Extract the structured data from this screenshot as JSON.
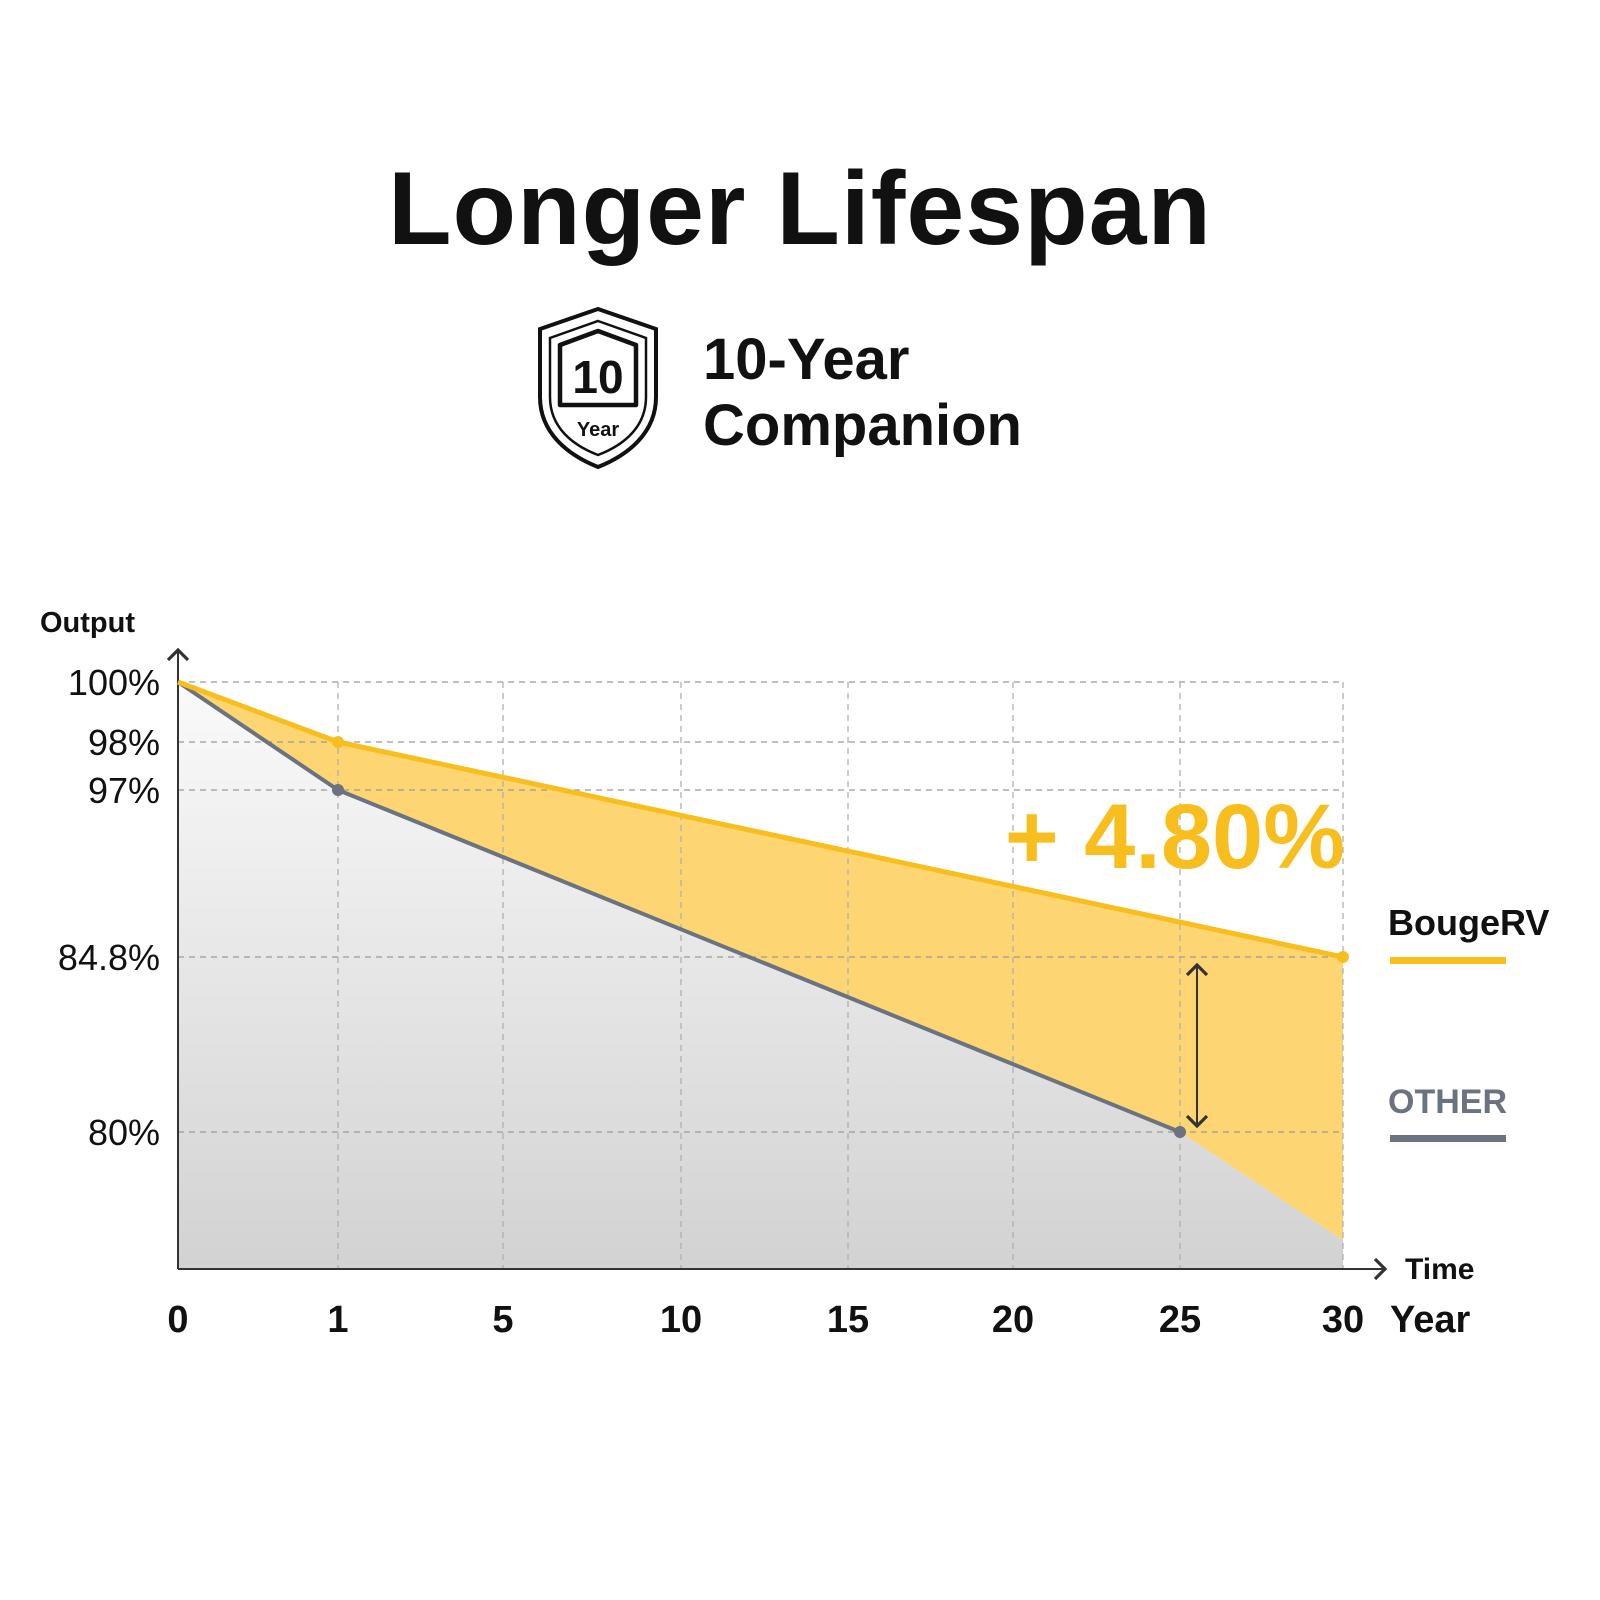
{
  "header": {
    "title": "Longer Lifespan",
    "badge_number": "10",
    "badge_unit": "Year",
    "badge_line1": "10-Year",
    "badge_line2": "Companion"
  },
  "chart_data": {
    "type": "line",
    "ylabel": "Output",
    "xlabel": "Time",
    "x_unit": "Year",
    "x_ticks": [
      "0",
      "1",
      "5",
      "10",
      "15",
      "20",
      "25",
      "30"
    ],
    "y_ticks": [
      "100%",
      "98%",
      "97%",
      "84.8%",
      "80%"
    ],
    "grid": true,
    "series": [
      {
        "name": "BougeRV",
        "color": "#F7BE1E",
        "points": [
          {
            "x": "0",
            "y": 100
          },
          {
            "x": "1",
            "y": 98
          },
          {
            "x": "30",
            "y": 84.8
          }
        ]
      },
      {
        "name": "OTHER",
        "color": "#6B7381",
        "points": [
          {
            "x": "0",
            "y": 100
          },
          {
            "x": "1",
            "y": 97
          },
          {
            "x": "25",
            "y": 80
          }
        ]
      }
    ],
    "annotation": "+ 4.80%",
    "legend": [
      {
        "label": "BougeRV",
        "color": "#F7BE1E"
      },
      {
        "label": "OTHER",
        "color": "#6B7381"
      }
    ],
    "legend_position": "right"
  }
}
